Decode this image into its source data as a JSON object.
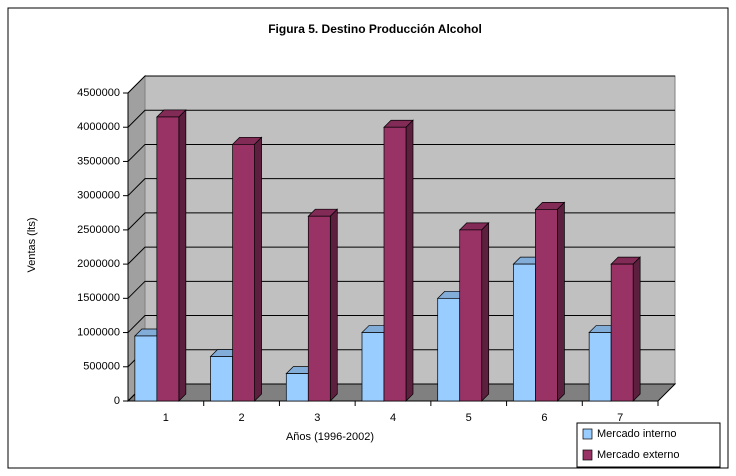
{
  "chart_data": {
    "type": "bar3d",
    "title": "Figura 5. Destino Producción Alcohol",
    "x_label": "Años (1996-2002)",
    "y_label": "Ventas (lts)",
    "categories": [
      "1",
      "2",
      "3",
      "4",
      "5",
      "6",
      "7"
    ],
    "series": [
      {
        "name": "Mercado interno",
        "color": "#99ccff",
        "values": [
          950000,
          650000,
          400000,
          1000000,
          1500000,
          2000000,
          1000000
        ]
      },
      {
        "name": "Mercado externo",
        "color": "#993366",
        "values": [
          4150000,
          3750000,
          2700000,
          4000000,
          2500000,
          2800000,
          2000000
        ]
      }
    ],
    "ylim": [
      0,
      4500000
    ],
    "yticks": [
      0,
      500000,
      1000000,
      1500000,
      2000000,
      2500000,
      3000000,
      3500000,
      4000000,
      4500000
    ],
    "grid": true,
    "legend": "bottom-right"
  }
}
